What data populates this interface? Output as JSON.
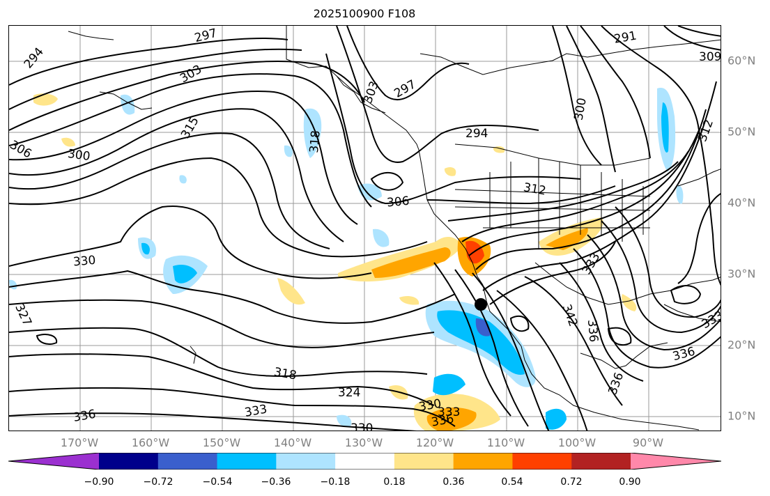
{
  "title": "2025100900 F108",
  "longitude_labels": [
    "170°W",
    "160°W",
    "150°W",
    "140°W",
    "130°W",
    "120°W",
    "110°W",
    "100°W",
    "90°W"
  ],
  "latitude_labels": [
    "60°N",
    "50°N",
    "40°N",
    "30°N",
    "20°N",
    "10°N"
  ],
  "contour_labels": [
    "294",
    "297",
    "303",
    "315",
    "306",
    "300",
    "291",
    "297",
    "303",
    "318",
    "294",
    "306",
    "312",
    "300",
    "312",
    "330",
    "333",
    "327",
    "318",
    "324",
    "330",
    "333",
    "336",
    "330",
    "336",
    "342",
    "336",
    "336",
    "336",
    "333",
    "309",
    "333"
  ],
  "colorbar": {
    "ticks": [
      "−0.90",
      "−0.72",
      "−0.54",
      "−0.36",
      "−0.18",
      "0.18",
      "0.36",
      "0.54",
      "0.72",
      "0.90"
    ],
    "colors": [
      "#9b30d0",
      "#00008b",
      "#3a5fcd",
      "#00bfff",
      "#aee4ff",
      "#ffffff",
      "#ffe58a",
      "#ffa500",
      "#ff4000",
      "#b22222",
      "#ff88aa"
    ]
  },
  "marker": "storm-center"
}
